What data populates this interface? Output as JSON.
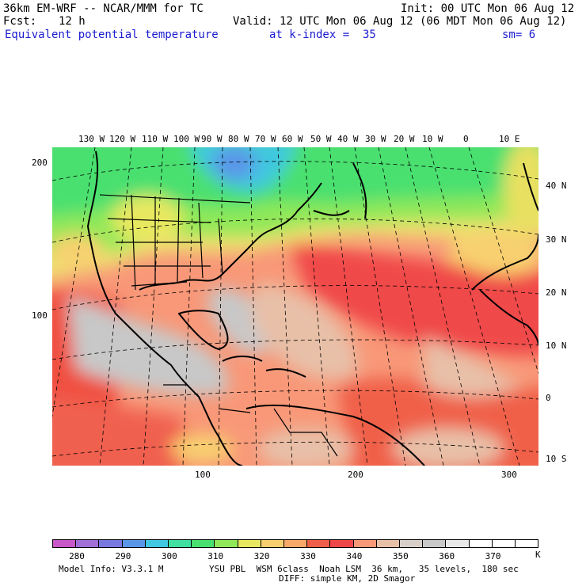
{
  "header": {
    "model": "36km EM-WRF -- NCAR/MMM for TC",
    "init": "Init: 00 UTC Mon 06 Aug 12",
    "fcst_label": "Fcst:",
    "fcst_value": "12 h",
    "valid": "Valid: 12 UTC Mon 06 Aug 12 (06 MDT Mon 06 Aug 12)",
    "field": "Equivalent potential temperature",
    "level": "at k-index =  35",
    "sm": "sm= 6"
  },
  "map": {
    "lon_labels": [
      "130 W",
      "120 W",
      "110 W",
      "100 W",
      "90 W",
      "80 W",
      "70 W",
      "60 W",
      "50 W",
      "40 W",
      "30 W",
      "20 W",
      "10 W",
      "0",
      "10 E"
    ],
    "lat_labels": [
      "40 N",
      "30 N",
      "20 N",
      "10 N",
      "0",
      "10 S"
    ],
    "y_grid_labels": [
      "200",
      "100"
    ],
    "x_grid_labels": [
      "100",
      "200",
      "300"
    ]
  },
  "colorbar": {
    "colors": [
      "#c857c8",
      "#a070d8",
      "#7878e0",
      "#5a96e8",
      "#40c8e0",
      "#40e0a0",
      "#48e070",
      "#90e858",
      "#e8e860",
      "#f8d070",
      "#f8a868",
      "#f06048",
      "#f04848",
      "#f89878",
      "#e8c0a8",
      "#d8d0c8",
      "#c8c8c8",
      "#e8e8e8",
      "#ffffff",
      "#ffffff",
      "#ffffff"
    ],
    "labels": [
      "280",
      "290",
      "300",
      "310",
      "320",
      "330",
      "340",
      "350",
      "360",
      "370"
    ],
    "unit": "K"
  },
  "footer": {
    "info": "Model Info: V3.3.1 M",
    "physics": "YSU PBL  WSM 6class  Noah LSM  36 km,   35 levels,  180 sec",
    "diff": "DIFF: simple KM, 2D Smagor"
  }
}
